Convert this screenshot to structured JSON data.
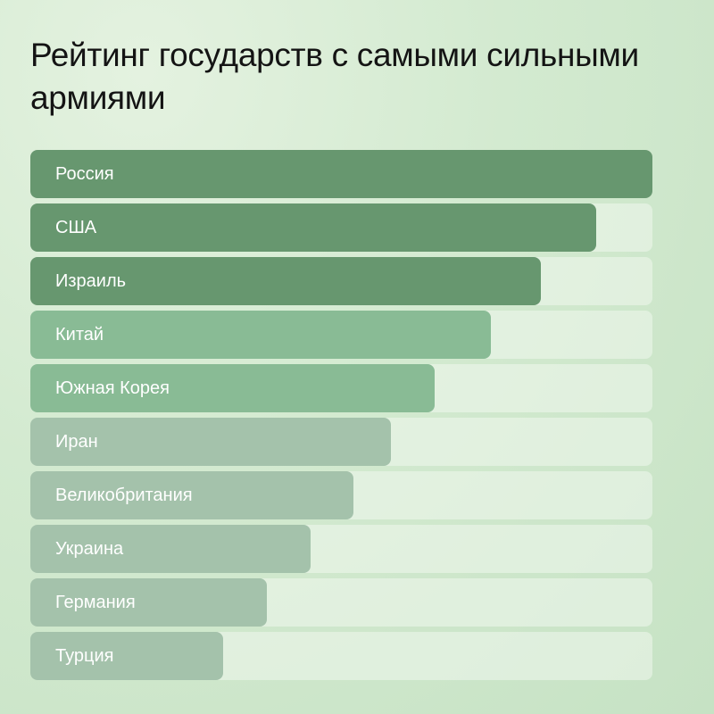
{
  "title": "Рейтинг государств с самыми сильными армиями",
  "colors": {
    "tier1": "#67976f",
    "tier2": "#89bb95",
    "tier3": "#a4c2ab",
    "track": "#eaf5e8"
  },
  "chart_data": {
    "type": "bar",
    "orientation": "horizontal",
    "title": "Рейтинг государств с самыми сильными армиями",
    "xlabel": "",
    "ylabel": "",
    "categories": [
      "Россия",
      "США",
      "Израиль",
      "Китай",
      "Южная Корея",
      "Иран",
      "Великобритания",
      "Украина",
      "Германия",
      "Турция"
    ],
    "values": [
      100,
      91,
      82,
      74,
      65,
      58,
      52,
      45,
      38,
      31
    ],
    "xlim": [
      0,
      100
    ],
    "grid": false,
    "legend": "none",
    "note": "Relative bar lengths (percent of track width); no numeric labels shown"
  },
  "rows": [
    {
      "label": "Россия",
      "pct": 100,
      "tier": "tier1"
    },
    {
      "label": "США",
      "pct": 91,
      "tier": "tier1"
    },
    {
      "label": "Израиль",
      "pct": 82,
      "tier": "tier1"
    },
    {
      "label": "Китай",
      "pct": 74,
      "tier": "tier2"
    },
    {
      "label": "Южная Корея",
      "pct": 65,
      "tier": "tier2"
    },
    {
      "label": "Иран",
      "pct": 58,
      "tier": "tier3"
    },
    {
      "label": "Великобритания",
      "pct": 52,
      "tier": "tier3"
    },
    {
      "label": "Украина",
      "pct": 45,
      "tier": "tier3"
    },
    {
      "label": "Германия",
      "pct": 38,
      "tier": "tier3"
    },
    {
      "label": "Турция",
      "pct": 31,
      "tier": "tier3"
    }
  ]
}
